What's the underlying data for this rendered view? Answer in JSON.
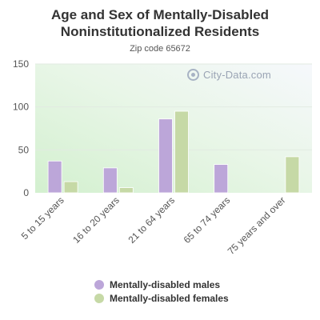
{
  "chart_data": {
    "type": "bar",
    "title": "Age and Sex of Mentally-Disabled Noninstitutionalized Residents",
    "subtitle": "Zip code 65672",
    "categories": [
      "5 to 15 years",
      "16 to 20 years",
      "21 to 64 years",
      "65 to 74 years",
      "75 years and over"
    ],
    "series": [
      {
        "name": "Mentally-disabled males",
        "color": "#bca6d9",
        "values": [
          37,
          29,
          86,
          33,
          0
        ]
      },
      {
        "name": "Mentally-disabled females",
        "color": "#c6d9a6",
        "values": [
          13,
          6,
          95,
          0,
          42
        ]
      }
    ],
    "yticks": [
      0,
      50,
      100,
      150
    ],
    "ylim": [
      0,
      150
    ],
    "xlabel": "",
    "ylabel": "",
    "grid": true,
    "legend": "bottom"
  },
  "watermark": "City-Data.com",
  "colors": {
    "axis_text": "#555555",
    "title_text": "#333333"
  }
}
